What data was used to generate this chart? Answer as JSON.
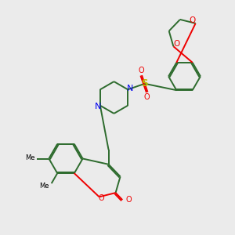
{
  "bg_color": "#ebebeb",
  "bond_color": "#2d6b2d",
  "N_color": "#0000ee",
  "O_color": "#ee0000",
  "S_color": "#bbbb00",
  "lw": 1.4,
  "figsize": [
    3.0,
    3.0
  ],
  "dpi": 100,
  "xlim": [
    0,
    10
  ],
  "ylim": [
    0,
    10
  ]
}
